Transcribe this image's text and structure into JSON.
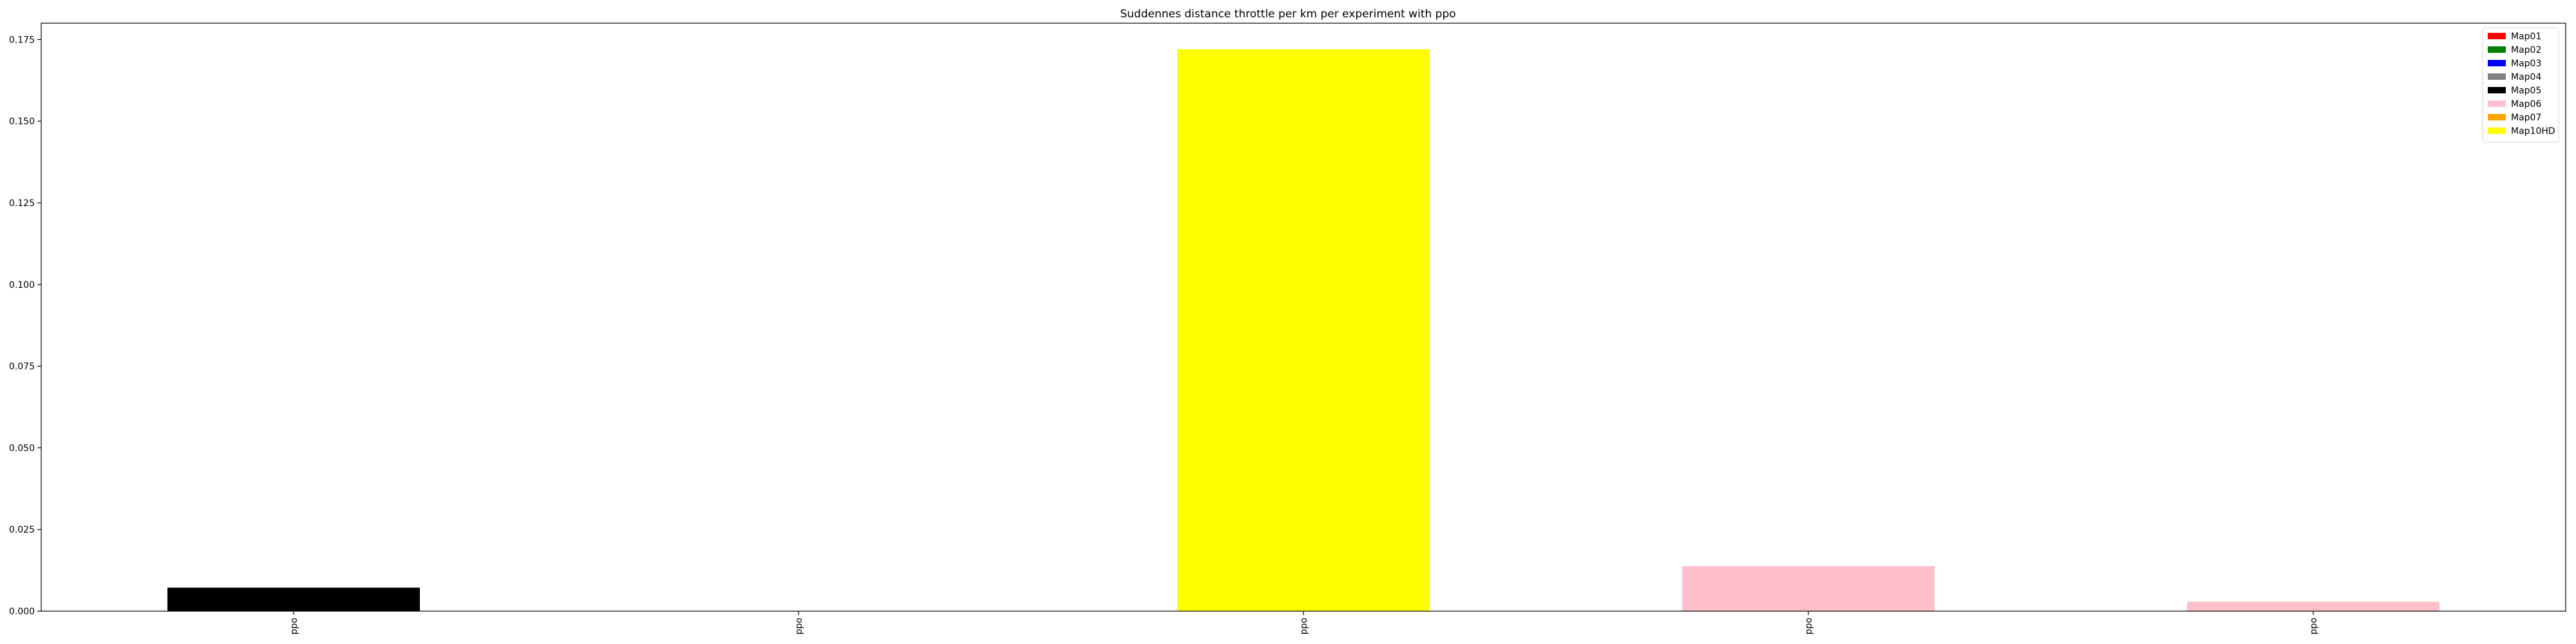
{
  "chart_data": {
    "type": "bar",
    "title": "Suddennes distance throttle per km per experiment with ppo",
    "xlabel": "",
    "ylabel": "",
    "categories": [
      "ppo",
      "ppo",
      "ppo",
      "ppo",
      "ppo"
    ],
    "bars": [
      {
        "category_index": 0,
        "series": "Map05",
        "value": 0.0072
      },
      {
        "category_index": 2,
        "series": "Map10HD",
        "value": 0.172
      },
      {
        "category_index": 3,
        "series": "Map06",
        "value": 0.0138
      },
      {
        "category_index": 4,
        "series": "Map06",
        "value": 0.0029
      }
    ],
    "series": [
      {
        "name": "Map01",
        "color": "#ff0000"
      },
      {
        "name": "Map02",
        "color": "#008000"
      },
      {
        "name": "Map03",
        "color": "#0000ff"
      },
      {
        "name": "Map04",
        "color": "#808080"
      },
      {
        "name": "Map05",
        "color": "#000000"
      },
      {
        "name": "Map06",
        "color": "#ffc0cb"
      },
      {
        "name": "Map07",
        "color": "#ffa500"
      },
      {
        "name": "Map10HD",
        "color": "#ffff00"
      }
    ],
    "ylim": [
      0,
      0.18
    ],
    "yticks": [
      "0.000",
      "0.025",
      "0.050",
      "0.075",
      "0.100",
      "0.125",
      "0.150",
      "0.175"
    ],
    "grid": false,
    "legend_position": "top-right"
  }
}
